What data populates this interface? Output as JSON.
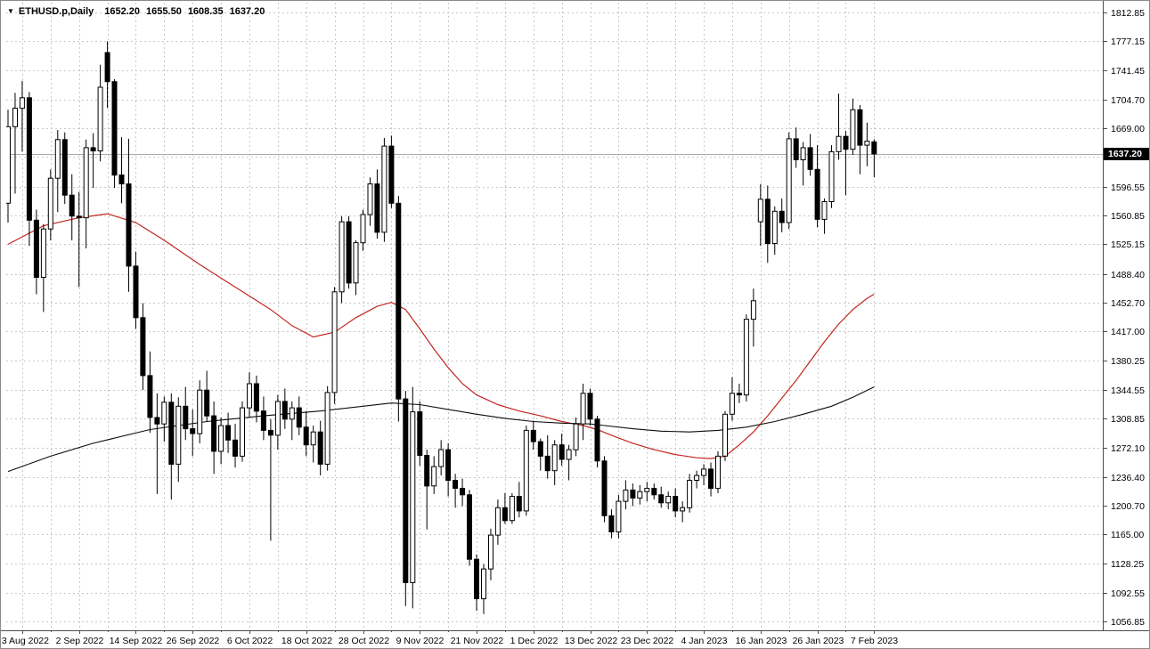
{
  "window": {
    "background": "#ffffff",
    "border_color": "#8a8a8a"
  },
  "header": {
    "symbol_marker": "▼",
    "title": "ETHUSD.p,Daily",
    "open": "1652.20",
    "high": "1655.50",
    "low": "1608.35",
    "close": "1637.20"
  },
  "price_axis": {
    "current_price": "1637.20",
    "badge_bg": "#000000",
    "badge_fg": "#ffffff"
  },
  "chart_data": {
    "type": "candlestick",
    "symbol": "ETHUSD.p",
    "timeframe": "Daily",
    "title": "ETHUSD.p,Daily  1652.20 1655.50 1608.35 1637.20",
    "last_bar": {
      "open": 1652.2,
      "high": 1655.5,
      "low": 1608.35,
      "close": 1637.2
    },
    "current_price": 1637.2,
    "y_min": 1056.85,
    "y_max": 1812.85,
    "grid": {
      "on": true,
      "color": "#c8c8c8",
      "style": "dashed"
    },
    "colors": {
      "bull_fill": "#ffffff",
      "bear_fill": "#000000",
      "candle_outline": "#000000",
      "current_price_line": "#ababab",
      "axis_line": "#4d4d4d"
    },
    "price_ticks": [
      1812.85,
      1777.15,
      1741.45,
      1704.7,
      1669.0,
      1633.3,
      1596.55,
      1560.85,
      1525.15,
      1488.4,
      1452.7,
      1417.0,
      1380.25,
      1344.55,
      1308.85,
      1272.1,
      1236.4,
      1200.7,
      1165.0,
      1128.25,
      1092.55,
      1056.85
    ],
    "date_ticks": [
      {
        "index": 2,
        "label": "23 Aug 2022"
      },
      {
        "index": 10,
        "label": "2 Sep 2022"
      },
      {
        "index": 18,
        "label": "14 Sep 2022"
      },
      {
        "index": 26,
        "label": "26 Sep 2022"
      },
      {
        "index": 34,
        "label": "6 Oct 2022"
      },
      {
        "index": 42,
        "label": "18 Oct 2022"
      },
      {
        "index": 50,
        "label": "28 Oct 2022"
      },
      {
        "index": 58,
        "label": "9 Nov 2022"
      },
      {
        "index": 66,
        "label": "21 Nov 2022"
      },
      {
        "index": 74,
        "label": "1 Dec 2022"
      },
      {
        "index": 82,
        "label": "13 Dec 2022"
      },
      {
        "index": 90,
        "label": "23 Dec 2022"
      },
      {
        "index": 98,
        "label": "4 Jan 2023"
      },
      {
        "index": 106,
        "label": "16 Jan 2023"
      },
      {
        "index": 114,
        "label": "26 Jan 2023"
      },
      {
        "index": 122,
        "label": "7 Feb 2023"
      }
    ],
    "candles_format": [
      "open",
      "high",
      "low",
      "close"
    ],
    "candles": [
      [
        1576,
        1692,
        1552,
        1671
      ],
      [
        1671,
        1713,
        1588,
        1694
      ],
      [
        1694,
        1728,
        1640,
        1707
      ],
      [
        1707,
        1714,
        1523,
        1555
      ],
      [
        1555,
        1568,
        1463,
        1484
      ],
      [
        1484,
        1550,
        1441,
        1544
      ],
      [
        1544,
        1618,
        1530,
        1607
      ],
      [
        1607,
        1667,
        1565,
        1655
      ],
      [
        1655,
        1664,
        1575,
        1586
      ],
      [
        1586,
        1612,
        1530,
        1560
      ],
      [
        1560,
        1590,
        1472,
        1558
      ],
      [
        1558,
        1655,
        1520,
        1645
      ],
      [
        1645,
        1663,
        1595,
        1641
      ],
      [
        1641,
        1748,
        1628,
        1720
      ],
      [
        1763,
        1777,
        1694,
        1727
      ],
      [
        1727,
        1730,
        1595,
        1611
      ],
      [
        1611,
        1658,
        1576,
        1600
      ],
      [
        1600,
        1656,
        1466,
        1498
      ],
      [
        1498,
        1516,
        1420,
        1434
      ],
      [
        1434,
        1452,
        1344,
        1362
      ],
      [
        1362,
        1392,
        1291,
        1310
      ],
      [
        1310,
        1340,
        1215,
        1302
      ],
      [
        1302,
        1336,
        1280,
        1329
      ],
      [
        1329,
        1340,
        1208,
        1252
      ],
      [
        1252,
        1335,
        1230,
        1324
      ],
      [
        1324,
        1348,
        1282,
        1296
      ],
      [
        1296,
        1320,
        1262,
        1290
      ],
      [
        1290,
        1356,
        1278,
        1344
      ],
      [
        1344,
        1368,
        1305,
        1312
      ],
      [
        1312,
        1330,
        1240,
        1268
      ],
      [
        1268,
        1310,
        1252,
        1300
      ],
      [
        1300,
        1316,
        1266,
        1282
      ],
      [
        1282,
        1302,
        1248,
        1262
      ],
      [
        1262,
        1330,
        1255,
        1322
      ],
      [
        1322,
        1366,
        1310,
        1352
      ],
      [
        1352,
        1362,
        1304,
        1318
      ],
      [
        1318,
        1336,
        1282,
        1294
      ],
      [
        1294,
        1308,
        1157,
        1288
      ],
      [
        1288,
        1338,
        1270,
        1330
      ],
      [
        1330,
        1346,
        1296,
        1308
      ],
      [
        1308,
        1330,
        1282,
        1322
      ],
      [
        1322,
        1336,
        1288,
        1298
      ],
      [
        1298,
        1318,
        1262,
        1276
      ],
      [
        1276,
        1300,
        1254,
        1292
      ],
      [
        1292,
        1306,
        1238,
        1252
      ],
      [
        1252,
        1349,
        1244,
        1341
      ],
      [
        1341,
        1472,
        1327,
        1466
      ],
      [
        1466,
        1560,
        1452,
        1553
      ],
      [
        1553,
        1560,
        1470,
        1477
      ],
      [
        1477,
        1530,
        1462,
        1527
      ],
      [
        1527,
        1568,
        1517,
        1562
      ],
      [
        1562,
        1608,
        1548,
        1600
      ],
      [
        1600,
        1618,
        1532,
        1540
      ],
      [
        1540,
        1657,
        1528,
        1647
      ],
      [
        1647,
        1660,
        1570,
        1576
      ],
      [
        1576,
        1585,
        1305,
        1333
      ],
      [
        1333,
        1343,
        1076,
        1105
      ],
      [
        1105,
        1348,
        1073,
        1317
      ],
      [
        1317,
        1330,
        1250,
        1263
      ],
      [
        1263,
        1270,
        1171,
        1225
      ],
      [
        1225,
        1262,
        1215,
        1249
      ],
      [
        1249,
        1282,
        1238,
        1270
      ],
      [
        1270,
        1278,
        1212,
        1232
      ],
      [
        1232,
        1240,
        1198,
        1222
      ],
      [
        1222,
        1234,
        1200,
        1214
      ],
      [
        1214,
        1220,
        1126,
        1134
      ],
      [
        1134,
        1140,
        1070,
        1085
      ],
      [
        1085,
        1128,
        1066,
        1122
      ],
      [
        1122,
        1172,
        1108,
        1164
      ],
      [
        1164,
        1208,
        1152,
        1198
      ],
      [
        1198,
        1216,
        1178,
        1182
      ],
      [
        1182,
        1216,
        1178,
        1212
      ],
      [
        1212,
        1230,
        1186,
        1194
      ],
      [
        1194,
        1300,
        1188,
        1294
      ],
      [
        1294,
        1306,
        1270,
        1280
      ],
      [
        1280,
        1284,
        1244,
        1262
      ],
      [
        1262,
        1288,
        1234,
        1244
      ],
      [
        1244,
        1282,
        1226,
        1276
      ],
      [
        1276,
        1290,
        1250,
        1258
      ],
      [
        1258,
        1276,
        1232,
        1270
      ],
      [
        1270,
        1310,
        1262,
        1302
      ],
      [
        1302,
        1352,
        1282,
        1340
      ],
      [
        1340,
        1346,
        1300,
        1308
      ],
      [
        1308,
        1312,
        1248,
        1256
      ],
      [
        1256,
        1262,
        1180,
        1188
      ],
      [
        1188,
        1196,
        1160,
        1168
      ],
      [
        1168,
        1214,
        1160,
        1206
      ],
      [
        1206,
        1232,
        1196,
        1220
      ],
      [
        1220,
        1228,
        1200,
        1210
      ],
      [
        1210,
        1226,
        1202,
        1218
      ],
      [
        1218,
        1230,
        1206,
        1222
      ],
      [
        1222,
        1228,
        1208,
        1214
      ],
      [
        1214,
        1224,
        1198,
        1204
      ],
      [
        1204,
        1218,
        1196,
        1212
      ],
      [
        1212,
        1222,
        1186,
        1194
      ],
      [
        1194,
        1206,
        1180,
        1198
      ],
      [
        1198,
        1240,
        1192,
        1232
      ],
      [
        1232,
        1244,
        1222,
        1238
      ],
      [
        1238,
        1252,
        1226,
        1246
      ],
      [
        1246,
        1254,
        1212,
        1222
      ],
      [
        1222,
        1268,
        1216,
        1262
      ],
      [
        1262,
        1318,
        1256,
        1314
      ],
      [
        1314,
        1360,
        1306,
        1340
      ],
      [
        1340,
        1352,
        1328,
        1338
      ],
      [
        1338,
        1438,
        1330,
        1432
      ],
      [
        1432,
        1470,
        1398,
        1455
      ],
      [
        1553,
        1600,
        1523,
        1581
      ],
      [
        1581,
        1598,
        1502,
        1526
      ],
      [
        1526,
        1572,
        1512,
        1566
      ],
      [
        1566,
        1582,
        1540,
        1552
      ],
      [
        1552,
        1664,
        1544,
        1656
      ],
      [
        1656,
        1670,
        1620,
        1630
      ],
      [
        1630,
        1652,
        1598,
        1645
      ],
      [
        1645,
        1662,
        1610,
        1618
      ],
      [
        1618,
        1648,
        1546,
        1556
      ],
      [
        1556,
        1582,
        1538,
        1578
      ],
      [
        1578,
        1648,
        1570,
        1640
      ],
      [
        1640,
        1712,
        1630,
        1659
      ],
      [
        1659,
        1666,
        1586,
        1643
      ],
      [
        1643,
        1706,
        1636,
        1692
      ],
      [
        1692,
        1698,
        1612,
        1648
      ],
      [
        1648,
        1676,
        1622,
        1653
      ],
      [
        1652.2,
        1655.5,
        1608.35,
        1637.2
      ]
    ],
    "moving_averages": [
      {
        "name": "ma-red",
        "color": "#c2251f",
        "width": 1.2,
        "points": [
          [
            0,
            1525
          ],
          [
            5,
            1548
          ],
          [
            10,
            1558
          ],
          [
            14,
            1563
          ],
          [
            18,
            1552
          ],
          [
            22,
            1530
          ],
          [
            27,
            1500
          ],
          [
            32,
            1472
          ],
          [
            37,
            1444
          ],
          [
            40,
            1424
          ],
          [
            43,
            1410
          ],
          [
            46,
            1416
          ],
          [
            49,
            1434
          ],
          [
            52,
            1448
          ],
          [
            54,
            1453
          ],
          [
            56,
            1444
          ],
          [
            58,
            1420
          ],
          [
            60,
            1395
          ],
          [
            62,
            1372
          ],
          [
            64,
            1352
          ],
          [
            66,
            1338
          ],
          [
            69,
            1326
          ],
          [
            72,
            1318
          ],
          [
            75,
            1312
          ],
          [
            78,
            1305
          ],
          [
            81,
            1300
          ],
          [
            83,
            1295
          ],
          [
            85,
            1288
          ],
          [
            88,
            1278
          ],
          [
            91,
            1270
          ],
          [
            94,
            1264
          ],
          [
            97,
            1260
          ],
          [
            99,
            1259
          ],
          [
            101,
            1262
          ],
          [
            103,
            1276
          ],
          [
            105,
            1292
          ],
          [
            107,
            1312
          ],
          [
            109,
            1334
          ],
          [
            111,
            1356
          ],
          [
            113,
            1380
          ],
          [
            115,
            1404
          ],
          [
            117,
            1426
          ],
          [
            119,
            1444
          ],
          [
            121,
            1458
          ],
          [
            122,
            1463
          ]
        ]
      },
      {
        "name": "ma-black",
        "color": "#0d0d0d",
        "width": 1.1,
        "points": [
          [
            0,
            1243
          ],
          [
            6,
            1262
          ],
          [
            12,
            1278
          ],
          [
            20,
            1295
          ],
          [
            28,
            1305
          ],
          [
            36,
            1312
          ],
          [
            44,
            1318
          ],
          [
            50,
            1324
          ],
          [
            54,
            1328
          ],
          [
            58,
            1326
          ],
          [
            62,
            1320
          ],
          [
            66,
            1314
          ],
          [
            70,
            1309
          ],
          [
            74,
            1305
          ],
          [
            78,
            1303
          ],
          [
            82,
            1302
          ],
          [
            84,
            1300
          ],
          [
            88,
            1296
          ],
          [
            92,
            1293
          ],
          [
            96,
            1292
          ],
          [
            100,
            1294
          ],
          [
            104,
            1298
          ],
          [
            108,
            1305
          ],
          [
            112,
            1314
          ],
          [
            116,
            1324
          ],
          [
            119,
            1335
          ],
          [
            122,
            1348
          ]
        ]
      }
    ]
  }
}
